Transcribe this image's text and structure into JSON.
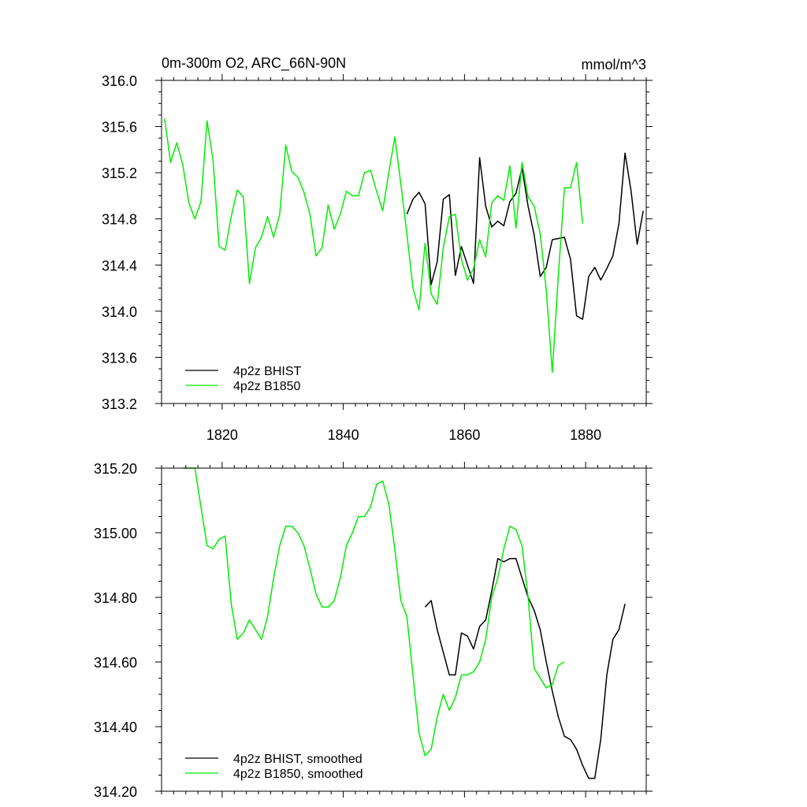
{
  "colors": {
    "bhist": "#000000",
    "b1850": "#00ee00",
    "axis": "#000000"
  },
  "chart_data": [
    {
      "type": "line",
      "title": "0m-300m O2, ARC_66N-90N",
      "units": "mmol/m^3",
      "xlim": [
        1810,
        1890
      ],
      "ylim": [
        313.2,
        316.0
      ],
      "xticks": [
        1820,
        1840,
        1860,
        1880
      ],
      "xtick_labels": [
        "1820",
        "1840",
        "1860",
        "1880"
      ],
      "yticks": [
        313.2,
        313.6,
        314.0,
        314.4,
        314.8,
        315.2,
        315.6,
        316.0
      ],
      "ytick_labels": [
        "313.2",
        "313.6",
        "314.0",
        "314.4",
        "314.8",
        "315.2",
        "315.6",
        "316.0"
      ],
      "legend_position": "bottom-left",
      "series": [
        {
          "name": "4p2z BHIST",
          "color": "#000000",
          "x": [
            1850.5,
            1851.5,
            1852.5,
            1853.5,
            1854.5,
            1855.5,
            1856.5,
            1857.5,
            1858.5,
            1859.5,
            1860.5,
            1861.5,
            1862.5,
            1863.5,
            1864.5,
            1865.5,
            1866.5,
            1867.5,
            1868.5,
            1869.5,
            1870.5,
            1871.5,
            1872.5,
            1873.5,
            1874.5,
            1875.5,
            1876.5,
            1877.5,
            1878.5,
            1879.5,
            1880.5,
            1881.5,
            1882.5,
            1883.5,
            1884.5,
            1885.5,
            1886.5,
            1887.5,
            1888.5,
            1889.5
          ],
          "y": [
            314.84,
            314.97,
            315.03,
            314.93,
            314.23,
            314.43,
            314.97,
            315.01,
            314.31,
            314.56,
            314.4,
            314.24,
            315.33,
            314.91,
            314.73,
            314.78,
            314.74,
            314.95,
            315.02,
            315.24,
            314.91,
            314.66,
            314.3,
            314.38,
            314.62,
            314.63,
            314.64,
            314.45,
            313.96,
            313.93,
            314.3,
            314.38,
            314.27,
            314.37,
            314.48,
            314.76,
            315.37,
            315.04,
            314.58,
            314.87
          ]
        },
        {
          "name": "4p2z B1850",
          "color": "#00ee00",
          "x": [
            1810.5,
            1811.5,
            1812.5,
            1813.5,
            1814.5,
            1815.5,
            1816.5,
            1817.5,
            1818.5,
            1819.5,
            1820.5,
            1821.5,
            1822.5,
            1823.5,
            1824.5,
            1825.5,
            1826.5,
            1827.5,
            1828.5,
            1829.5,
            1830.5,
            1831.5,
            1832.5,
            1833.5,
            1834.5,
            1835.5,
            1836.5,
            1837.5,
            1838.5,
            1839.5,
            1840.5,
            1841.5,
            1842.5,
            1843.5,
            1844.5,
            1845.5,
            1846.5,
            1847.5,
            1848.5,
            1849.5,
            1850.5,
            1851.5,
            1852.5,
            1853.5,
            1854.5,
            1855.5,
            1856.5,
            1857.5,
            1858.5,
            1859.5,
            1860.5,
            1861.5,
            1862.5,
            1863.5,
            1864.5,
            1865.5,
            1866.5,
            1867.5,
            1868.5,
            1869.5,
            1870.5,
            1871.5,
            1872.5,
            1873.5,
            1874.5,
            1875.5,
            1876.5,
            1877.5,
            1878.5,
            1879.5
          ],
          "y": [
            315.67,
            315.29,
            315.46,
            315.27,
            314.94,
            314.8,
            314.95,
            315.65,
            315.31,
            314.56,
            314.53,
            314.82,
            315.05,
            314.99,
            314.24,
            314.55,
            314.64,
            314.82,
            314.64,
            314.84,
            315.44,
            315.21,
            315.16,
            315.03,
            314.84,
            314.48,
            314.55,
            314.92,
            314.71,
            314.84,
            315.04,
            315.0,
            315.0,
            315.2,
            315.22,
            315.04,
            314.87,
            315.2,
            315.51,
            315.1,
            314.67,
            314.2,
            314.01,
            314.59,
            314.15,
            314.06,
            314.55,
            314.82,
            314.84,
            314.45,
            314.27,
            314.37,
            314.62,
            314.47,
            314.94,
            315.0,
            314.96,
            315.26,
            314.72,
            315.29,
            314.99,
            314.91,
            314.67,
            314.18,
            313.47,
            314.31,
            315.07,
            315.07,
            315.29,
            314.76
          ]
        }
      ]
    },
    {
      "type": "line",
      "title": "",
      "xlim": [
        1810,
        1890
      ],
      "ylim": [
        314.2,
        315.2
      ],
      "xticks": [
        1820,
        1840,
        1860,
        1880
      ],
      "yticks": [
        314.2,
        314.4,
        314.6,
        314.8,
        315.0,
        315.2
      ],
      "ytick_labels": [
        "314.20",
        "314.40",
        "314.60",
        "314.80",
        "315.00",
        "315.20"
      ],
      "legend_position": "bottom-left",
      "series": [
        {
          "name": "4p2z BHIST, smoothed",
          "color": "#000000",
          "x": [
            1853.5,
            1854.5,
            1855.5,
            1856.5,
            1857.5,
            1858.5,
            1859.5,
            1860.5,
            1861.5,
            1862.5,
            1863.5,
            1864.5,
            1865.5,
            1866.5,
            1867.5,
            1868.5,
            1869.5,
            1870.5,
            1871.5,
            1872.5,
            1873.5,
            1874.5,
            1875.5,
            1876.5,
            1877.5,
            1878.5,
            1879.5,
            1880.5,
            1881.5,
            1882.5,
            1883.5,
            1884.5,
            1885.5,
            1886.5
          ],
          "y": [
            314.77,
            314.79,
            314.7,
            314.63,
            314.56,
            314.56,
            314.69,
            314.68,
            314.64,
            314.71,
            314.73,
            314.82,
            314.92,
            314.91,
            314.92,
            314.92,
            314.86,
            314.8,
            314.76,
            314.7,
            314.6,
            314.51,
            314.43,
            314.37,
            314.36,
            314.33,
            314.28,
            314.24,
            314.24,
            314.36,
            314.56,
            314.67,
            314.7,
            314.78
          ]
        },
        {
          "name": "4p2z B1850, smoothed",
          "color": "#00ee00",
          "x": [
            1813.5,
            1814.5,
            1815.5,
            1816.5,
            1817.5,
            1818.5,
            1819.5,
            1820.5,
            1821.5,
            1822.5,
            1823.5,
            1824.5,
            1825.5,
            1826.5,
            1827.5,
            1828.5,
            1829.5,
            1830.5,
            1831.5,
            1832.5,
            1833.5,
            1834.5,
            1835.5,
            1836.5,
            1837.5,
            1838.5,
            1839.5,
            1840.5,
            1841.5,
            1842.5,
            1843.5,
            1844.5,
            1845.5,
            1846.5,
            1847.5,
            1848.5,
            1849.5,
            1850.5,
            1851.5,
            1852.5,
            1853.5,
            1854.5,
            1855.5,
            1856.5,
            1857.5,
            1858.5,
            1859.5,
            1860.5,
            1861.5,
            1862.5,
            1863.5,
            1864.5,
            1865.5,
            1866.5,
            1867.5,
            1868.5,
            1869.5,
            1870.5,
            1871.5,
            1872.5,
            1873.5,
            1874.5,
            1875.5,
            1876.5
          ],
          "y": [
            315.2,
            315.2,
            315.2,
            315.08,
            314.96,
            314.95,
            314.98,
            314.99,
            314.78,
            314.67,
            314.69,
            314.73,
            314.7,
            314.67,
            314.74,
            314.86,
            314.96,
            315.02,
            315.02,
            315.0,
            314.96,
            314.89,
            314.81,
            314.77,
            314.77,
            314.79,
            314.86,
            314.96,
            315.0,
            315.05,
            315.05,
            315.08,
            315.15,
            315.16,
            315.09,
            314.95,
            314.79,
            314.74,
            314.56,
            314.38,
            314.31,
            314.33,
            314.43,
            314.5,
            314.45,
            314.49,
            314.56,
            314.56,
            314.57,
            314.6,
            314.67,
            314.8,
            314.86,
            314.95,
            315.02,
            315.01,
            314.96,
            314.8,
            314.58,
            314.55,
            314.52,
            314.53,
            314.59,
            314.6
          ]
        }
      ]
    }
  ]
}
